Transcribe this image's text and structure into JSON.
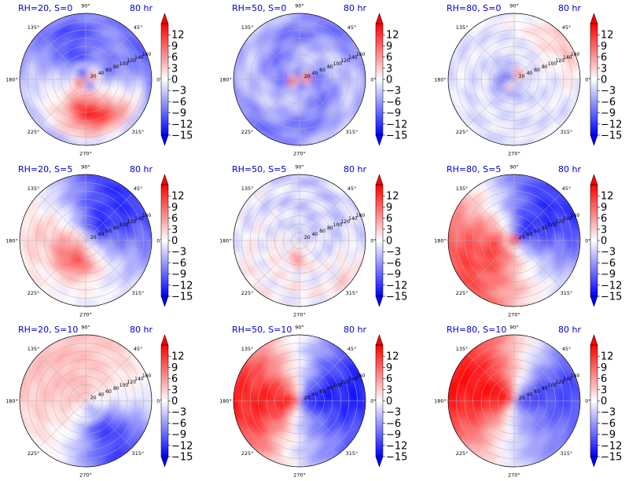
{
  "figure": {
    "angle_labels": [
      "0°",
      "45°",
      "90°",
      "135°",
      "180°",
      "225°",
      "270°",
      "315°"
    ],
    "radial_ticks": [
      20,
      40,
      60,
      80,
      100,
      120,
      140,
      160
    ],
    "colorbar": {
      "ticks": [
        12,
        9,
        6,
        3,
        0,
        -3,
        -6,
        -9,
        -12,
        -15
      ],
      "tick_labels": [
        "12",
        "9",
        "6",
        "3",
        "0",
        "−3",
        "−6",
        "−9",
        "−12",
        "−15"
      ],
      "range": [
        -15,
        15
      ],
      "colormap": "bwr",
      "extend": "both"
    }
  },
  "chart_data": [
    {
      "type": "heatmap",
      "title_left": "RH=20, S=0",
      "title_right": "80 hr",
      "projection": "polar"
    },
    {
      "type": "heatmap",
      "title_left": "RH=50, S=0",
      "title_right": "80 hr",
      "projection": "polar"
    },
    {
      "type": "heatmap",
      "title_left": "RH=80, S=0",
      "title_right": "80 hr",
      "projection": "polar"
    },
    {
      "type": "heatmap",
      "title_left": "RH=20, S=5",
      "title_right": "80 hr",
      "projection": "polar"
    },
    {
      "type": "heatmap",
      "title_left": "RH=50, S=5",
      "title_right": "80 hr",
      "projection": "polar"
    },
    {
      "type": "heatmap",
      "title_left": "RH=80, S=5",
      "title_right": "80 hr",
      "projection": "polar"
    },
    {
      "type": "heatmap",
      "title_left": "RH=20, S=10",
      "title_right": "80 hr",
      "projection": "polar"
    },
    {
      "type": "heatmap",
      "title_left": "RH=50, S=10",
      "title_right": "80 hr",
      "projection": "polar"
    },
    {
      "type": "heatmap",
      "title_left": "RH=80, S=10",
      "title_right": "80 hr",
      "projection": "polar"
    }
  ]
}
